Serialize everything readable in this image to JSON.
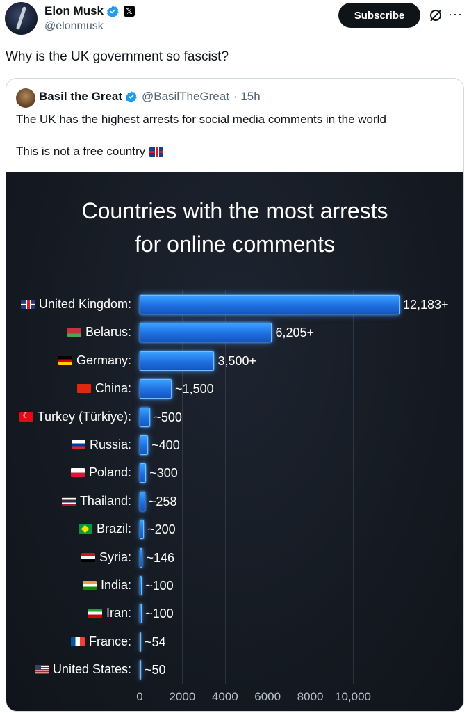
{
  "author": {
    "name": "Elon Musk",
    "handle": "@elonmusk"
  },
  "actions": {
    "subscribe_label": "Subscribe"
  },
  "tweet": {
    "text": "Why is the UK government so fascist?"
  },
  "quote": {
    "name": "Basil the Great",
    "handle": "@BasilTheGreat",
    "time": "· 15h",
    "line1": "The UK has the highest arrests for social media comments in the world",
    "line2": "This is not a free country"
  },
  "chart_data": {
    "type": "bar",
    "orientation": "horizontal",
    "title_line1": "Countries with the most arrests",
    "title_line2": "for online comments",
    "categories": [
      "United Kingdom:",
      "Belarus:",
      "Germany:",
      "China:",
      "Turkey (Türkiye):",
      "Russia:",
      "Poland:",
      "Thailand:",
      "Brazil:",
      "Syria:",
      "India:",
      "Iran:",
      "France:",
      "United States:"
    ],
    "flags": [
      "uk",
      "by",
      "de",
      "cn",
      "tr",
      "ru",
      "pl",
      "th",
      "br",
      "sy",
      "in",
      "ir",
      "fr",
      "us"
    ],
    "values": [
      12183,
      6205,
      3500,
      1500,
      500,
      400,
      300,
      258,
      200,
      146,
      100,
      100,
      54,
      50
    ],
    "value_labels": [
      "12,183+",
      "6,205+",
      "3,500+",
      "~1,500",
      "~500",
      "~400",
      "~300",
      "~258",
      "~200",
      "~146",
      "~100",
      "~100",
      "~54",
      "~50"
    ],
    "xticks": [
      0,
      2000,
      4000,
      6000,
      8000,
      10000
    ],
    "xtick_labels": [
      "0",
      "2000",
      "4000",
      "6000",
      "8000",
      "10,000"
    ],
    "xlim": [
      0,
      12183
    ],
    "colors": {
      "bar": "#2f8cff",
      "background": "#151a22"
    }
  }
}
